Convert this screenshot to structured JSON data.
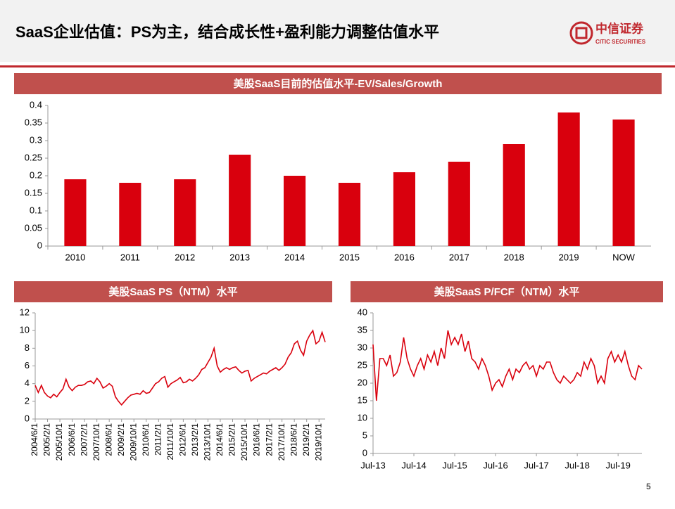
{
  "header": {
    "title": "SaaS企业估值：PS为主，结合成长性+盈利能力调整估值水平",
    "logo_cn": "中信证券",
    "logo_en": "CITIC SECURITIES"
  },
  "page_number": 5,
  "chart_data": [
    {
      "type": "bar",
      "title": "美股SaaS目前的估值水平-EV/Sales/Growth",
      "color": "#d9000d",
      "categories": [
        "2010",
        "2011",
        "2012",
        "2013",
        "2014",
        "2015",
        "2016",
        "2017",
        "2018",
        "2019",
        "NOW"
      ],
      "values": [
        0.19,
        0.18,
        0.19,
        0.26,
        0.2,
        0.18,
        0.21,
        0.24,
        0.29,
        0.38,
        0.36
      ],
      "ylim": [
        0,
        0.4
      ],
      "yticks": [
        0,
        0.05,
        0.1,
        0.15,
        0.2,
        0.25,
        0.3,
        0.35,
        0.4
      ]
    },
    {
      "type": "line",
      "title": "美股SaaS PS（NTM）水平",
      "color": "#d9000d",
      "categories": [
        "2004/6/1",
        null,
        null,
        null,
        "2005/2/1",
        null,
        null,
        null,
        "2005/10/1",
        null,
        null,
        null,
        "2006/6/1",
        null,
        null,
        null,
        "2007/2/1",
        null,
        null,
        null,
        "2007/10/1",
        null,
        null,
        null,
        "2008/6/1",
        null,
        null,
        null,
        "2009/2/1",
        null,
        null,
        null,
        "2009/10/1",
        null,
        null,
        null,
        "2010/6/1",
        null,
        null,
        null,
        "2011/2/1",
        null,
        null,
        null,
        "2011/10/1",
        null,
        null,
        null,
        "2012/6/1",
        null,
        null,
        null,
        "2013/2/1",
        null,
        null,
        null,
        "2013/10/1",
        null,
        null,
        null,
        "2014/6/1",
        null,
        null,
        null,
        "2015/2/1",
        null,
        null,
        null,
        "2015/10/1",
        null,
        null,
        null,
        "2016/6/1",
        null,
        null,
        null,
        "2017/2/1",
        null,
        null,
        null,
        "2017/10/1",
        null,
        null,
        null,
        "2018/6/1",
        null,
        null,
        null,
        "2019/2/1",
        null,
        null,
        null,
        "2019/10/1",
        null,
        null
      ],
      "values": [
        3.8,
        3.0,
        3.8,
        3.0,
        2.6,
        2.4,
        2.8,
        2.5,
        3.0,
        3.4,
        4.5,
        3.6,
        3.2,
        3.6,
        3.8,
        3.8,
        3.9,
        4.2,
        4.3,
        4.0,
        4.6,
        4.2,
        3.5,
        3.7,
        4.0,
        3.7,
        2.5,
        2.0,
        1.6,
        2.0,
        2.4,
        2.7,
        2.8,
        2.9,
        2.8,
        3.2,
        2.9,
        3.0,
        3.5,
        4.0,
        4.2,
        4.6,
        4.8,
        3.6,
        4.0,
        4.2,
        4.4,
        4.7,
        4.1,
        4.2,
        4.5,
        4.3,
        4.6,
        5.0,
        5.6,
        5.8,
        6.4,
        7.0,
        8.0,
        6.0,
        5.3,
        5.6,
        5.8,
        5.6,
        5.8,
        5.9,
        5.5,
        5.2,
        5.4,
        5.5,
        4.3,
        4.6,
        4.8,
        5.0,
        5.2,
        5.1,
        5.4,
        5.6,
        5.8,
        5.5,
        5.8,
        6.2,
        7.0,
        7.5,
        8.5,
        8.8,
        7.8,
        7.2,
        8.8,
        9.5,
        10.0,
        8.5,
        8.8,
        9.8,
        8.7
      ],
      "ylim": [
        0,
        12
      ],
      "yticks": [
        0,
        2,
        4,
        6,
        8,
        10,
        12
      ]
    },
    {
      "type": "line",
      "title": "美股SaaS P/FCF（NTM）水平",
      "color": "#d9000d",
      "categories": [
        "Jul-13",
        null,
        null,
        null,
        null,
        null,
        null,
        null,
        null,
        null,
        null,
        null,
        "Jul-14",
        null,
        null,
        null,
        null,
        null,
        null,
        null,
        null,
        null,
        null,
        null,
        "Jul-15",
        null,
        null,
        null,
        null,
        null,
        null,
        null,
        null,
        null,
        null,
        null,
        "Jul-16",
        null,
        null,
        null,
        null,
        null,
        null,
        null,
        null,
        null,
        null,
        null,
        "Jul-17",
        null,
        null,
        null,
        null,
        null,
        null,
        null,
        null,
        null,
        null,
        null,
        "Jul-18",
        null,
        null,
        null,
        null,
        null,
        null,
        null,
        null,
        null,
        null,
        null,
        "Jul-19",
        null,
        null,
        null,
        null,
        null,
        null,
        null
      ],
      "values": [
        31,
        15,
        27,
        27,
        25,
        28,
        22,
        23,
        26,
        33,
        27,
        24,
        22,
        25,
        27,
        24,
        28,
        26,
        29,
        25,
        30,
        27,
        35,
        31,
        33,
        31,
        34,
        29,
        32,
        27,
        26,
        24,
        27,
        25,
        22,
        18,
        20,
        21,
        19,
        22,
        24,
        21,
        24,
        23,
        25,
        26,
        24,
        25,
        22,
        25,
        24,
        26,
        26,
        23,
        21,
        20,
        22,
        21,
        20,
        21,
        23,
        22,
        26,
        24,
        27,
        25,
        20,
        22,
        20,
        27,
        29,
        26,
        28,
        26,
        29,
        25,
        22,
        21,
        25,
        24
      ],
      "ylim": [
        0,
        40
      ],
      "yticks": [
        0,
        5,
        10,
        15,
        20,
        25,
        30,
        35,
        40
      ]
    }
  ]
}
